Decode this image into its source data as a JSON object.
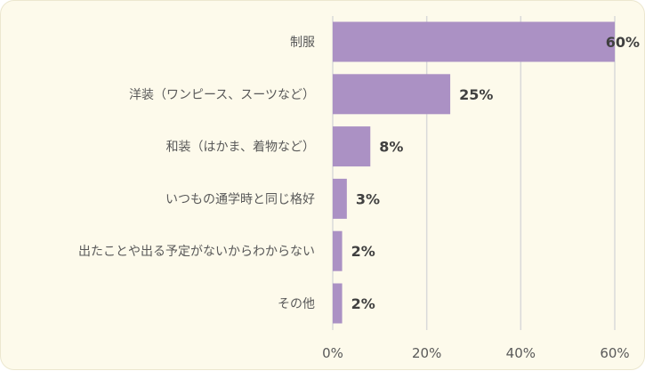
{
  "chart_data": {
    "type": "bar",
    "orientation": "horizontal",
    "categories": [
      "制服",
      "洋装（ワンピース、スーツなど）",
      "和装（はかま、着物など）",
      "いつもの通学時と同じ格好",
      "出たことや出る予定がないからわからない",
      "その他"
    ],
    "values": [
      60,
      25,
      8,
      3,
      2,
      2
    ],
    "value_labels": [
      "60%",
      "25%",
      "8%",
      "3%",
      "2%",
      "2%"
    ],
    "xlim": [
      0,
      60
    ],
    "xticks": [
      0,
      20,
      40,
      60
    ],
    "xtick_labels": [
      "0%",
      "20%",
      "40%",
      "60%"
    ],
    "grid": true,
    "bar_color": "#ab91c4",
    "grid_color": "#d9d9d9"
  }
}
